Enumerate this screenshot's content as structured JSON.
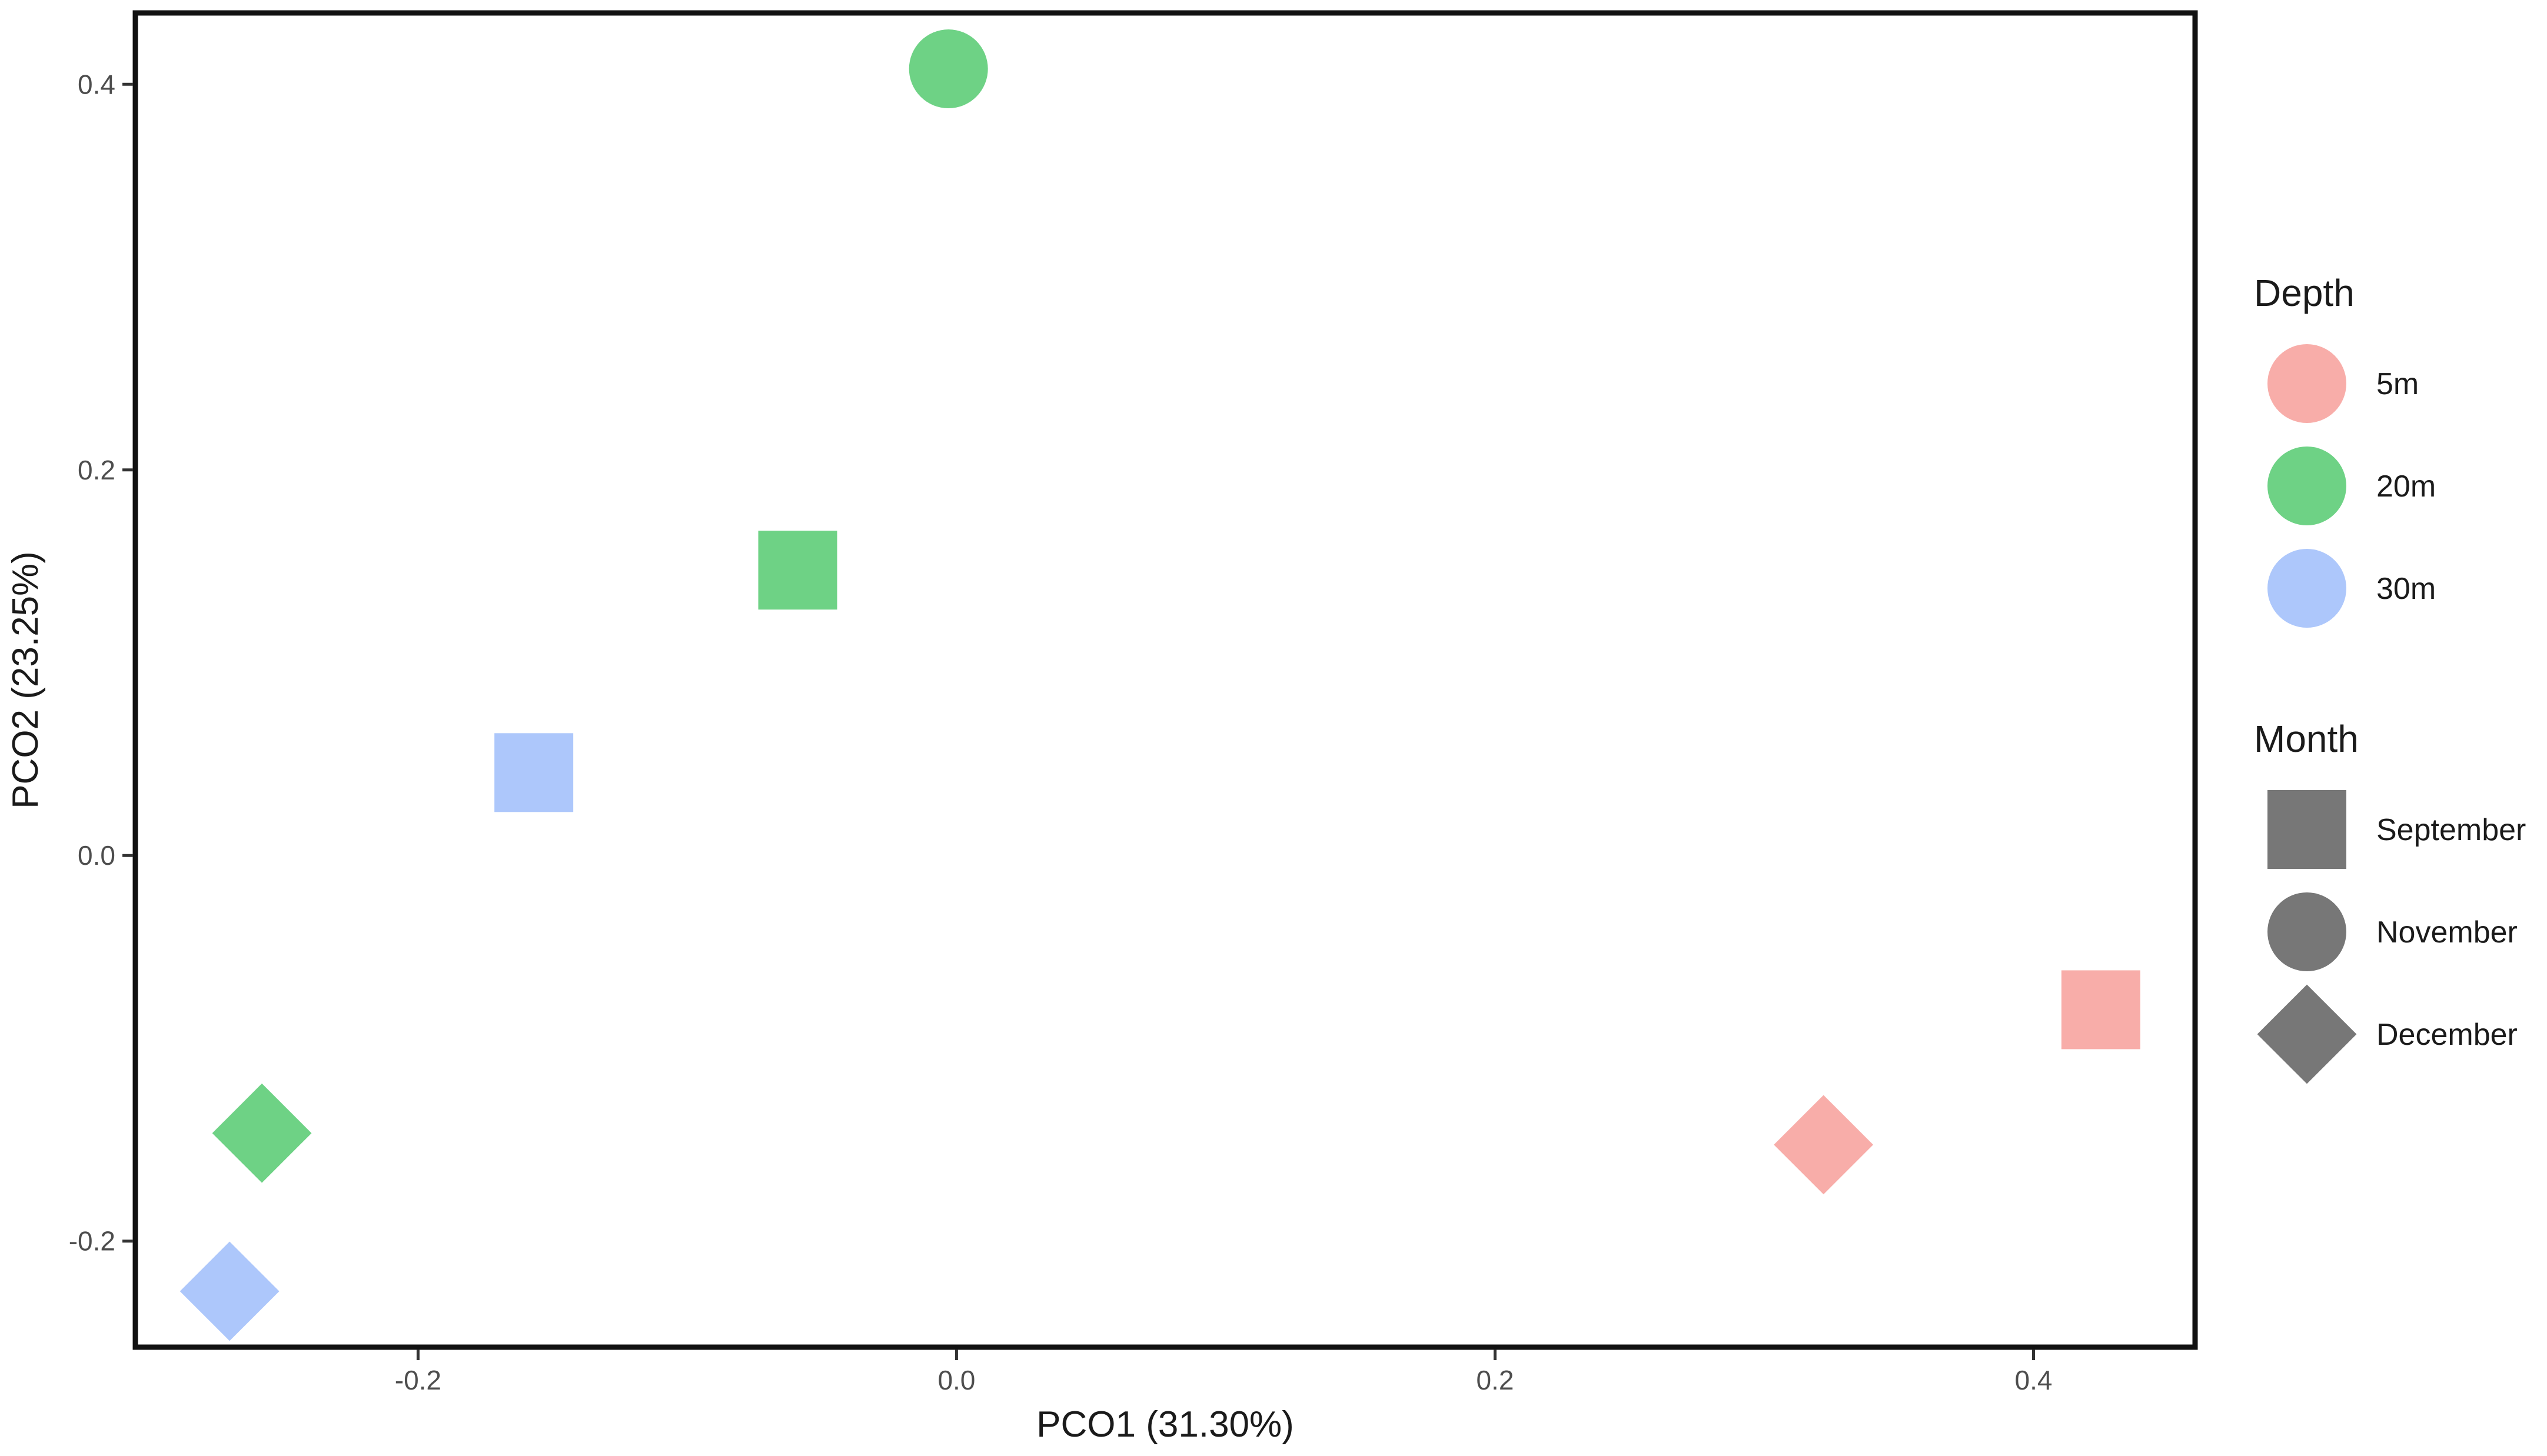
{
  "chart_data": {
    "type": "scatter",
    "title": "",
    "xlabel": "PCO1 (31.30%)",
    "ylabel": "PCO2 (23.25%)",
    "xlim": [
      -0.305,
      0.46
    ],
    "ylim": [
      -0.255,
      0.437
    ],
    "xticks": [
      -0.2,
      0.0,
      0.2,
      0.4
    ],
    "xtick_labels": [
      "-0.2",
      "0.0",
      "0.2",
      "0.4"
    ],
    "yticks": [
      -0.2,
      0.0,
      0.2,
      0.4
    ],
    "ytick_labels": [
      "-0.2",
      "0.0",
      "0.2",
      "0.4"
    ],
    "grid": false,
    "legend_placement": "right",
    "depth_legend": {
      "title": "Depth",
      "items": [
        {
          "label": "5m",
          "color": "#f8a9a4"
        },
        {
          "label": "20m",
          "color": "#66d07e"
        },
        {
          "label": "30m",
          "color": "#a9c4fb"
        }
      ]
    },
    "month_legend": {
      "title": "Month",
      "items": [
        {
          "label": "September",
          "shape": "square"
        },
        {
          "label": "November",
          "shape": "circle"
        },
        {
          "label": "December",
          "shape": "diamond"
        }
      ]
    },
    "points": [
      {
        "x": -0.003,
        "y": 0.408,
        "depth": "20m",
        "month": "November"
      },
      {
        "x": -0.059,
        "y": 0.148,
        "depth": "20m",
        "month": "September"
      },
      {
        "x": -0.157,
        "y": 0.043,
        "depth": "30m",
        "month": "September"
      },
      {
        "x": -0.258,
        "y": -0.144,
        "depth": "20m",
        "month": "December"
      },
      {
        "x": -0.27,
        "y": -0.226,
        "depth": "30m",
        "month": "December"
      },
      {
        "x": 0.322,
        "y": -0.15,
        "depth": "5m",
        "month": "December"
      },
      {
        "x": 0.425,
        "y": -0.08,
        "depth": "5m",
        "month": "September"
      }
    ],
    "legend_shape_color": "#777777"
  }
}
